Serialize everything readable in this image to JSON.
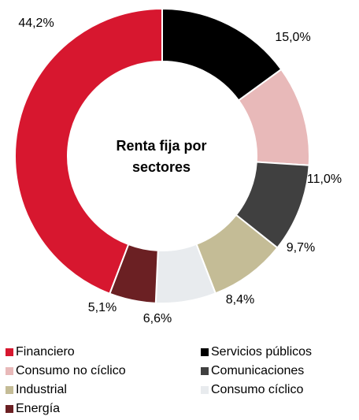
{
  "chart_data": {
    "type": "donut",
    "title": [
      "Renta fija por",
      "sectores"
    ],
    "categories": [
      "Financiero",
      "Servicios públicos",
      "Consumo no cíclico",
      "Comunicaciones",
      "Industrial",
      "Consumo cíclico",
      "Energía"
    ],
    "values": [
      44.2,
      15.0,
      11.0,
      9.7,
      8.4,
      6.6,
      5.1
    ],
    "value_labels": [
      "44,2%",
      "15,0%",
      "11,0%",
      "9,7%",
      "8,4%",
      "6,6%",
      "5,1%"
    ],
    "colors": [
      "#d7172f",
      "#000000",
      "#e8b9b9",
      "#404040",
      "#c4bc96",
      "#e8ebee",
      "#6b2023"
    ]
  }
}
